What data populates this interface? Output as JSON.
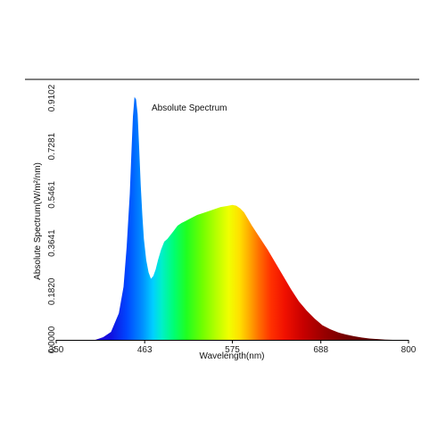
{
  "chart_data": {
    "type": "area",
    "title": "Absolute Spectrum",
    "xlabel": "Wavelength(nm)",
    "ylabel": "Absolute Spectrum(W/m²/nm)",
    "xlim": [
      350,
      800
    ],
    "ylim": [
      0,
      0.9102
    ],
    "x_ticks": [
      "350",
      "463",
      "575",
      "688",
      "800"
    ],
    "y_ticks": [
      "0.0000",
      "0.1820",
      "0.3641",
      "0.5461",
      "0.7281",
      "0.9102"
    ],
    "grid": false,
    "fill": "visible-spectrum color gradient",
    "x": [
      400,
      410,
      420,
      430,
      436,
      440,
      444,
      446,
      448,
      450,
      452,
      454,
      456,
      458,
      460,
      462,
      465,
      468,
      471,
      474,
      477,
      480,
      484,
      488,
      492,
      496,
      500,
      505,
      510,
      515,
      520,
      530,
      540,
      550,
      560,
      570,
      575,
      580,
      585,
      590,
      595,
      600,
      610,
      620,
      630,
      640,
      650,
      660,
      670,
      680,
      690,
      700,
      710,
      720,
      730,
      740,
      750,
      760,
      770,
      780
    ],
    "values": [
      0.0,
      0.01,
      0.03,
      0.1,
      0.2,
      0.35,
      0.55,
      0.7,
      0.84,
      0.915,
      0.905,
      0.85,
      0.72,
      0.58,
      0.47,
      0.38,
      0.3,
      0.254,
      0.23,
      0.24,
      0.265,
      0.3,
      0.34,
      0.37,
      0.38,
      0.395,
      0.41,
      0.43,
      0.44,
      0.447,
      0.455,
      0.47,
      0.48,
      0.49,
      0.5,
      0.505,
      0.508,
      0.505,
      0.495,
      0.48,
      0.455,
      0.43,
      0.385,
      0.34,
      0.29,
      0.24,
      0.19,
      0.145,
      0.11,
      0.08,
      0.055,
      0.04,
      0.028,
      0.02,
      0.014,
      0.009,
      0.005,
      0.003,
      0.001,
      0.0
    ]
  }
}
